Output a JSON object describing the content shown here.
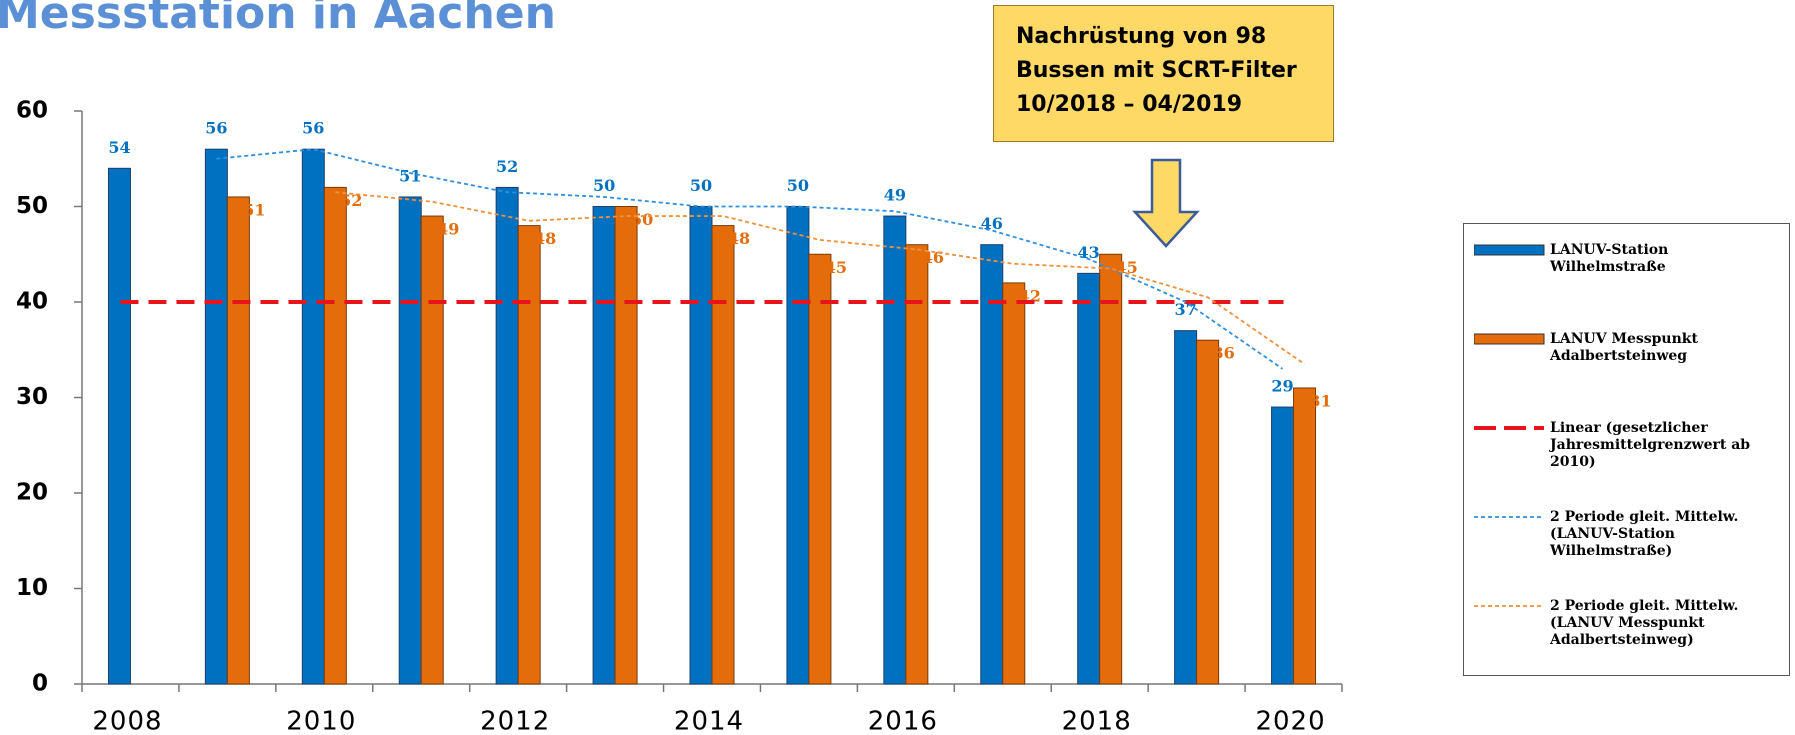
{
  "chart_data": {
    "type": "bar",
    "title": "Messstation in Aachen",
    "annotation": [
      "Nachrüstung von 98",
      "Bussen mit SCRT-Filter",
      "10/2018 – 04/2019"
    ],
    "categories": [
      2008,
      null,
      2010,
      null,
      2012,
      null,
      2014,
      null,
      2016,
      null,
      2018,
      null,
      2020
    ],
    "series": [
      {
        "name": "LANUV-Station Wilhelmstraße",
        "kind": "bar",
        "color": "#0070c0",
        "values": [
          54,
          56,
          56,
          51,
          52,
          50,
          50,
          50,
          49,
          46,
          43,
          37,
          29
        ]
      },
      {
        "name": "LANUV Messpunkt Adalbertsteinweg",
        "kind": "bar",
        "color": "#e46c0a",
        "values": [
          null,
          51,
          52,
          49,
          48,
          50,
          48,
          45,
          46,
          42,
          45,
          36,
          31
        ]
      },
      {
        "name": "Linear (gesetzlicher Jahresmittelgrenzwert ab 2010)",
        "kind": "line",
        "style": "dashed",
        "color": "#e8141b",
        "values": [
          40,
          40,
          40,
          40,
          40,
          40,
          40,
          40,
          40,
          40,
          40,
          40,
          40
        ]
      },
      {
        "name": "2 Periode gleit. Mittelw. (LANUV-Station Wilhelmstraße)",
        "kind": "line",
        "style": "dotted",
        "color": "#2e8fe0",
        "anchor": 0,
        "values": [
          null,
          55,
          56,
          53.5,
          51.5,
          51,
          50,
          50,
          49.5,
          47.5,
          44.5,
          40,
          33
        ]
      },
      {
        "name": "2 Periode gleit. Mittelw. (LANUV Messpunkt Adalbertsteinweg)",
        "kind": "line",
        "style": "dotted",
        "color": "#f0903a",
        "anchor": 1,
        "values": [
          null,
          null,
          51.5,
          50.5,
          48.5,
          49,
          49,
          46.5,
          45.5,
          44,
          43.5,
          40.5,
          33.5
        ]
      }
    ],
    "ylim": [
      0,
      60
    ],
    "yticks": [
      0,
      10,
      20,
      30,
      40,
      50,
      60
    ],
    "grid": false,
    "legend": "right"
  }
}
